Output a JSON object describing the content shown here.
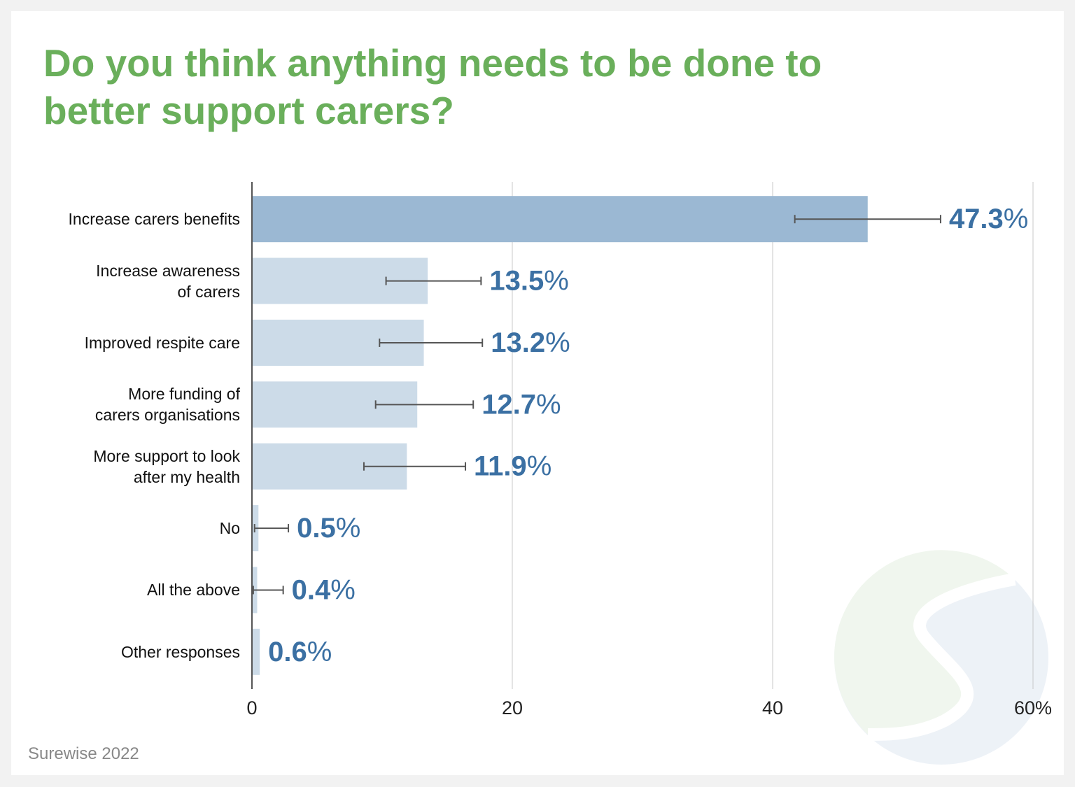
{
  "chart_data": {
    "type": "bar",
    "orientation": "horizontal",
    "title": "Do you think anything needs to be done to better support carers?",
    "source": "Surewise 2022",
    "categories": [
      "Increase carers benefits",
      "Increase awareness\nof carers",
      "Improved respite care",
      "More funding of\ncarers organisations",
      "More support to look\nafter my health",
      "No",
      "All the above",
      "Other responses"
    ],
    "values": [
      47.3,
      13.5,
      13.2,
      12.7,
      11.9,
      0.5,
      0.4,
      0.6
    ],
    "value_labels": [
      "47.3%",
      "13.5%",
      "13.2%",
      "12.7%",
      "11.9%",
      "0.5%",
      "0.4%",
      "0.6%"
    ],
    "ci_low": [
      41.7,
      10.3,
      9.8,
      9.5,
      8.6,
      0.2,
      0.1,
      null
    ],
    "ci_high": [
      52.9,
      17.6,
      17.7,
      17.0,
      16.4,
      2.8,
      2.4,
      null
    ],
    "colors": [
      "#9bb8d3",
      "#ccdbe8",
      "#ccdbe8",
      "#ccdbe8",
      "#ccdbe8",
      "#ccdbe8",
      "#ccdbe8",
      "#ccdbe8"
    ],
    "label_color": "#3b70a3",
    "title_color": "#6aaf5b",
    "xlim": [
      0,
      60
    ],
    "xticks": [
      0,
      20,
      40,
      {
        "value": 60,
        "label": "60%"
      }
    ],
    "grid": true
  }
}
